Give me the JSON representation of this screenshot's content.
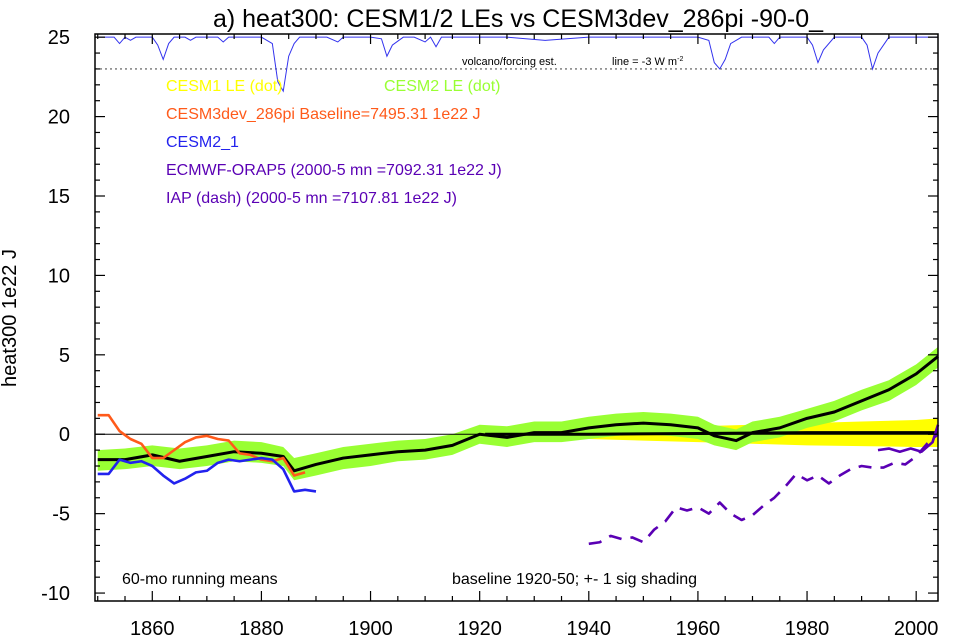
{
  "chart_data": {
    "type": "line",
    "title": "a) heat300: CESM1/2 LEs vs CESM3dev_286pi -90-0_",
    "ylabel": "heat300 1e22 J",
    "xlabel": "",
    "xlim": [
      1849.5,
      2004
    ],
    "ylim": [
      -10.5,
      25.2
    ],
    "x_ticks": [
      1860,
      1880,
      1900,
      1920,
      1940,
      1960,
      1980,
      2000
    ],
    "y_ticks": [
      -10,
      -5,
      0,
      5,
      10,
      15,
      20,
      25
    ],
    "grid": false,
    "zero_line": 0,
    "legend": [
      {
        "label": "CESM1 LE (dot)",
        "color": "#ffff00"
      },
      {
        "label": "CESM2 LE (dot)",
        "color": "#99ff33"
      },
      {
        "label": "CESM3dev_286pi Baseline=7495.31 1e22 J",
        "color": "#ff5a1a"
      },
      {
        "label": "CESM2_1",
        "color": "#2222ee"
      },
      {
        "label": "ECMWF-ORAP5 (2000-5 mn =7092.31 1e22 J)",
        "color": "#5a00b4"
      },
      {
        "label": "IAP (dash) (2000-5 mn =7107.81 1e22 J)",
        "color": "#5a00b4"
      }
    ],
    "annotations": {
      "volcano": "volcano/forcing est.",
      "line_prefix": "line = -3 W m",
      "line_exp": "-2",
      "running": "60-mo running means",
      "baseline": "baseline 1920-50; +- 1 sig shading"
    },
    "volcano_ref_y": 23,
    "volcano_series": {
      "x": [
        1850,
        1853,
        1854,
        1855,
        1856,
        1857,
        1858,
        1860,
        1861,
        1862,
        1863,
        1864,
        1866,
        1867,
        1868,
        1872,
        1873,
        1874,
        1876,
        1878,
        1880,
        1882,
        1883,
        1884,
        1885,
        1886,
        1887,
        1889,
        1892,
        1894,
        1895,
        1896,
        1898,
        1900,
        1902,
        1903,
        1904,
        1906,
        1908,
        1910,
        1911,
        1912,
        1913,
        1914,
        1918,
        1925,
        1932,
        1940,
        1955,
        1960,
        1962,
        1963,
        1964,
        1965,
        1966,
        1968,
        1970,
        1973,
        1974,
        1975,
        1977,
        1980,
        1981,
        1982,
        1983,
        1985,
        1988,
        1990,
        1991,
        1992,
        1993,
        1995,
        2000,
        2004
      ],
      "y": [
        25,
        25,
        24.6,
        25,
        24.8,
        25,
        25,
        25,
        24.5,
        23.6,
        24.6,
        25,
        25,
        24.8,
        25,
        25,
        24.7,
        25,
        25,
        25,
        25,
        24.6,
        22.2,
        21.6,
        23.8,
        24.6,
        25,
        25,
        25,
        24.7,
        25,
        25,
        25,
        25,
        24.9,
        23.8,
        24.5,
        25,
        25,
        24.7,
        25,
        24.4,
        25,
        25,
        25,
        25,
        24.8,
        25,
        25,
        25,
        24.8,
        23.4,
        23.0,
        23.6,
        24.6,
        25,
        25,
        25,
        24.6,
        25,
        25,
        25,
        24.5,
        23.4,
        24.2,
        25,
        25,
        25,
        24.5,
        23.0,
        24.0,
        25,
        25,
        25
      ]
    },
    "series": [
      {
        "name": "CESM1 LE (dot)",
        "kind": "band",
        "x": [
          1920,
          1930,
          1940,
          1950,
          1960,
          1970,
          1980,
          1990,
          2000,
          2004
        ],
        "upper": [
          0.1,
          0.2,
          0.3,
          0.4,
          0.5,
          0.6,
          0.7,
          0.8,
          0.9,
          1.0
        ],
        "lower": [
          -0.1,
          -0.2,
          -0.3,
          -0.4,
          -0.5,
          -0.6,
          -0.7,
          -0.75,
          -0.8,
          -0.8
        ]
      },
      {
        "name": "CESM2 LE (dot)",
        "kind": "band",
        "x": [
          1850,
          1855,
          1860,
          1865,
          1870,
          1875,
          1880,
          1884,
          1886,
          1890,
          1895,
          1900,
          1905,
          1910,
          1915,
          1920,
          1925,
          1930,
          1935,
          1940,
          1945,
          1950,
          1955,
          1960,
          1963,
          1967,
          1970,
          1975,
          1980,
          1985,
          1990,
          1995,
          2000,
          2004
        ],
        "upper": [
          -1.0,
          -0.9,
          -0.7,
          -0.9,
          -0.7,
          -0.4,
          -0.5,
          -0.8,
          -1.5,
          -1.2,
          -0.8,
          -0.6,
          -0.4,
          -0.3,
          0.0,
          0.6,
          0.5,
          0.8,
          0.8,
          1.1,
          1.3,
          1.4,
          1.3,
          1.1,
          0.6,
          0.3,
          0.8,
          1.1,
          1.6,
          2.1,
          2.8,
          3.4,
          4.4,
          5.5
        ],
        "lower": [
          -2.3,
          -2.2,
          -2.0,
          -2.2,
          -2.0,
          -1.7,
          -1.8,
          -2.0,
          -2.9,
          -2.6,
          -2.2,
          -2.0,
          -1.7,
          -1.6,
          -1.3,
          -0.6,
          -0.8,
          -0.5,
          -0.5,
          -0.3,
          -0.1,
          0.0,
          -0.1,
          -0.3,
          -0.7,
          -1.0,
          -0.5,
          -0.2,
          0.4,
          0.8,
          1.5,
          2.1,
          3.1,
          4.2
        ]
      },
      {
        "name": "CESM2 LE mean",
        "kind": "line",
        "color": "#000000",
        "x": [
          1850,
          1855,
          1860,
          1865,
          1870,
          1875,
          1880,
          1884,
          1886,
          1890,
          1895,
          1900,
          1905,
          1910,
          1915,
          1920,
          1925,
          1930,
          1935,
          1940,
          1945,
          1950,
          1955,
          1960,
          1963,
          1967,
          1970,
          1975,
          1980,
          1985,
          1990,
          1995,
          2000,
          2004
        ],
        "y": [
          -1.6,
          -1.6,
          -1.3,
          -1.7,
          -1.4,
          -1.1,
          -1.2,
          -1.4,
          -2.3,
          -1.9,
          -1.5,
          -1.3,
          -1.1,
          -1.0,
          -0.7,
          0.0,
          -0.2,
          0.1,
          0.1,
          0.4,
          0.6,
          0.7,
          0.6,
          0.4,
          -0.1,
          -0.4,
          0.1,
          0.4,
          1.0,
          1.4,
          2.1,
          2.8,
          3.8,
          4.9
        ]
      },
      {
        "name": "CESM1 LE mean",
        "kind": "line",
        "color": "#000000",
        "x": [
          1921,
          1940,
          1960,
          1980,
          2000,
          2004
        ],
        "y": [
          0.0,
          0.0,
          0.05,
          0.1,
          0.1,
          0.1
        ]
      },
      {
        "name": "CESM3dev_286pi Baseline=7495.31 1e22 J",
        "kind": "line",
        "color": "#ff5a1a",
        "x": [
          1850,
          1852,
          1854,
          1856,
          1858,
          1860,
          1862,
          1864,
          1866,
          1868,
          1870,
          1872,
          1874,
          1876,
          1878,
          1880,
          1882,
          1884,
          1886,
          1888
        ],
        "y": [
          1.2,
          1.2,
          0.2,
          -0.3,
          -0.6,
          -1.5,
          -1.5,
          -1.0,
          -0.5,
          -0.2,
          -0.1,
          -0.3,
          -0.4,
          -1.2,
          -1.3,
          -1.6,
          -1.7,
          -1.5,
          -2.6,
          -2.4
        ]
      },
      {
        "name": "CESM2_1",
        "kind": "line",
        "color": "#2222ee",
        "x": [
          1850,
          1852,
          1854,
          1856,
          1858,
          1860,
          1862,
          1864,
          1866,
          1868,
          1870,
          1872,
          1874,
          1876,
          1878,
          1880,
          1882,
          1884,
          1886,
          1888,
          1890
        ],
        "y": [
          -2.5,
          -2.5,
          -1.6,
          -1.8,
          -1.7,
          -2.0,
          -2.6,
          -3.1,
          -2.8,
          -2.4,
          -2.3,
          -1.8,
          -1.6,
          -1.7,
          -1.6,
          -1.5,
          -1.6,
          -2.2,
          -3.6,
          -3.5,
          -3.6
        ]
      },
      {
        "name": "ECMWF-ORAP5 (2000-5 mn =7092.31 1e22 J)",
        "kind": "line",
        "color": "#5a00b4",
        "x": [
          1993,
          1995,
          1997,
          1999,
          2001,
          2003,
          2004
        ],
        "y": [
          -1.0,
          -0.9,
          -1.1,
          -0.9,
          -1.1,
          -0.5,
          0.6
        ]
      },
      {
        "name": "IAP (dash) (2000-5 mn =7107.81 1e22 J)",
        "kind": "line",
        "dashed": true,
        "color": "#5a00b4",
        "x": [
          1940,
          1942,
          1944,
          1946,
          1948,
          1950,
          1952,
          1954,
          1956,
          1958,
          1960,
          1962,
          1964,
          1966,
          1968,
          1970,
          1972,
          1974,
          1976,
          1978,
          1980,
          1982,
          1984,
          1986,
          1988,
          1990,
          1992,
          1994,
          1996,
          1998,
          2000,
          2002,
          2004
        ],
        "y": [
          -6.9,
          -6.8,
          -6.4,
          -6.6,
          -6.5,
          -6.8,
          -6.0,
          -5.5,
          -4.6,
          -4.8,
          -4.6,
          -5.0,
          -4.3,
          -5.0,
          -5.4,
          -5.1,
          -4.5,
          -4.0,
          -3.3,
          -2.5,
          -2.9,
          -2.6,
          -3.1,
          -2.6,
          -2.2,
          -2.0,
          -2.1,
          -2.1,
          -1.8,
          -1.9,
          -1.4,
          -0.6,
          0.0
        ]
      }
    ]
  }
}
